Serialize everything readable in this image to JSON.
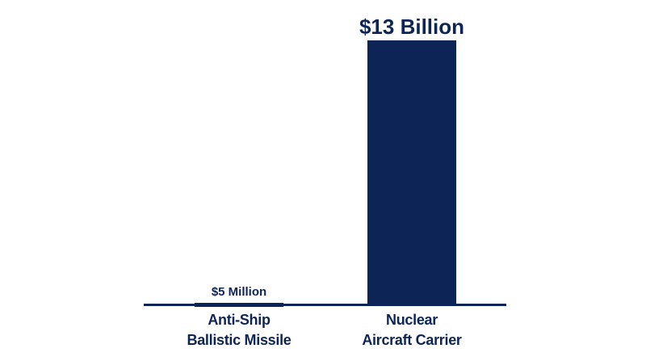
{
  "chart_data": {
    "type": "bar",
    "categories": [
      "Anti-Ship\nBallistic Missile",
      "Nuclear\nAircraft Carrier"
    ],
    "values": [
      5000000,
      13000000000
    ],
    "value_labels": [
      "$5 Million",
      "$13 Billion"
    ],
    "color": "#0d2556"
  }
}
